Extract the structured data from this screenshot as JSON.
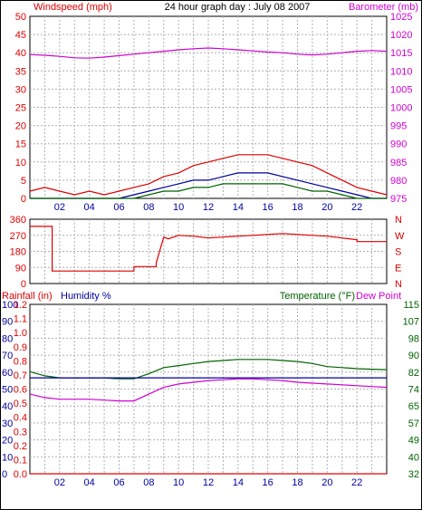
{
  "title": "24 hour graph day : July 08 2007",
  "colors": {
    "red": "#e00000",
    "magenta": "#d000d0",
    "blue": "#0000a0",
    "green": "#006400",
    "grid": "#b0b0b0",
    "frame": "#000000"
  },
  "x_ticks": [
    "02",
    "04",
    "06",
    "08",
    "10",
    "12",
    "14",
    "16",
    "18",
    "20",
    "22"
  ],
  "chart_data": [
    {
      "type": "line",
      "title": "24 hour graph day : July 08 2007",
      "ylabel": "Windspeed (mph)",
      "y2label": "Barometer (mb)",
      "ylim": [
        0,
        50
      ],
      "y2lim": [
        975,
        1025
      ],
      "yticks": [
        "50",
        "45",
        "40",
        "35",
        "30",
        "25",
        "20",
        "15",
        "10",
        "5",
        "0"
      ],
      "y2ticks": [
        "1025",
        "1020",
        "1015",
        "1010",
        "1005",
        "1000",
        "995",
        "990",
        "985",
        "980",
        "975"
      ],
      "xlim": [
        0,
        24
      ],
      "grid": true,
      "series": [
        {
          "key": "barometer",
          "axis": "right",
          "color": "#d000d0",
          "x": [
            0,
            1,
            2,
            3,
            4,
            5,
            6,
            7,
            8,
            9,
            10,
            11,
            12,
            13,
            14,
            15,
            16,
            17,
            18,
            19,
            20,
            21,
            22,
            23,
            24
          ],
          "y": [
            1014.5,
            1014.3,
            1014.0,
            1013.6,
            1013.5,
            1013.8,
            1014.2,
            1014.6,
            1015.0,
            1015.4,
            1015.8,
            1016.1,
            1016.3,
            1016.1,
            1015.8,
            1015.5,
            1015.2,
            1015.0,
            1014.6,
            1014.4,
            1014.6,
            1015.0,
            1015.4,
            1015.6,
            1015.4
          ]
        },
        {
          "key": "wind_gust",
          "axis": "left",
          "color": "#e00000",
          "x": [
            0,
            1,
            2,
            3,
            4,
            5,
            6,
            7,
            8,
            9,
            10,
            11,
            12,
            13,
            14,
            15,
            16,
            17,
            18,
            19,
            20,
            21,
            22,
            23,
            24
          ],
          "y": [
            2,
            3,
            2,
            1,
            2,
            1,
            2,
            3,
            4,
            6,
            7,
            9,
            10,
            11,
            12,
            12,
            12,
            11,
            10,
            9,
            7,
            5,
            3,
            2,
            1
          ]
        },
        {
          "key": "wind_avg",
          "axis": "left",
          "color": "#0000a0",
          "x": [
            0,
            1,
            2,
            3,
            4,
            5,
            6,
            7,
            8,
            9,
            10,
            11,
            12,
            13,
            14,
            15,
            16,
            17,
            18,
            19,
            20,
            21,
            22,
            23,
            24
          ],
          "y": [
            0,
            0,
            0,
            0,
            0,
            0,
            0,
            1,
            2,
            3,
            4,
            5,
            5,
            6,
            7,
            7,
            7,
            6,
            5,
            4,
            3,
            2,
            1,
            0,
            0
          ]
        },
        {
          "key": "wind_speed",
          "axis": "left",
          "color": "#006400",
          "x": [
            0,
            1,
            2,
            3,
            4,
            5,
            6,
            7,
            8,
            9,
            10,
            11,
            12,
            13,
            14,
            15,
            16,
            17,
            18,
            19,
            20,
            21,
            22,
            23,
            24
          ],
          "y": [
            0,
            0,
            0,
            0,
            0,
            0,
            0,
            0,
            1,
            2,
            2,
            3,
            3,
            4,
            4,
            4,
            4,
            4,
            3,
            2,
            2,
            1,
            0,
            0,
            0
          ]
        }
      ]
    },
    {
      "type": "line",
      "ylim": [
        0,
        360
      ],
      "yticks": [
        "360",
        "270",
        "180",
        "90",
        "0"
      ],
      "y2ticks": [
        "N",
        "W",
        "S",
        "E",
        "N"
      ],
      "xlim": [
        0,
        24
      ],
      "grid": true,
      "series": [
        {
          "key": "wind_direction",
          "axis": "left",
          "color": "#e00000",
          "x": [
            0,
            1.5,
            1.5,
            7,
            7,
            8.5,
            8.5,
            9.0,
            9.3,
            10,
            11,
            12,
            13,
            14,
            15,
            16,
            17,
            18,
            19,
            20,
            21,
            22,
            22,
            24
          ],
          "y": [
            320,
            320,
            70,
            70,
            95,
            95,
            115,
            260,
            250,
            270,
            265,
            255,
            260,
            265,
            270,
            275,
            280,
            275,
            270,
            265,
            255,
            245,
            235,
            235
          ]
        }
      ]
    },
    {
      "type": "line",
      "ylabel": "Rainfall (in)",
      "ylabel2": "Humidity %",
      "y2label": "Temperature (°F)",
      "y2label2": "Dew Point",
      "ylim": [
        0,
        100
      ],
      "yticks_humidity": [
        "100",
        "90",
        "80",
        "70",
        "60",
        "50",
        "40",
        "30",
        "20",
        "10",
        "0"
      ],
      "yticks_rain": [
        "1.2",
        "1.1",
        "1.0",
        "0.9",
        "0.8",
        "0.7",
        "0.6",
        "0.5",
        "0.4",
        "0.3",
        "0.2",
        "0.1",
        "0.0"
      ],
      "y2lim": [
        32,
        115
      ],
      "y2ticks": [
        "115",
        "107",
        "98",
        "90",
        "82",
        "74",
        "65",
        "57",
        "49",
        "40",
        "32"
      ],
      "xlim": [
        0,
        24
      ],
      "grid": true,
      "series": [
        {
          "key": "temperature",
          "axis": "right",
          "color": "#006400",
          "x": [
            0,
            1,
            2,
            3,
            4,
            5,
            6,
            7,
            8,
            9,
            10,
            11,
            12,
            13,
            14,
            15,
            16,
            17,
            18,
            19,
            20,
            21,
            22,
            23,
            24
          ],
          "y": [
            82,
            80,
            79,
            79,
            79,
            79,
            78.5,
            78.5,
            81,
            84,
            85,
            86,
            87,
            87.5,
            88,
            88,
            88,
            87.5,
            87,
            86,
            84.5,
            84,
            83.5,
            83.2,
            83
          ]
        },
        {
          "key": "dew_point",
          "axis": "right",
          "color": "#0000a0",
          "x": [
            0,
            24
          ],
          "y": [
            79,
            79
          ]
        },
        {
          "key": "humidity",
          "axis": "left",
          "color": "#d000d0",
          "x": [
            0,
            1,
            2,
            3,
            4,
            5,
            6,
            7,
            8,
            9,
            10,
            11,
            12,
            13,
            14,
            15,
            16,
            17,
            18,
            19,
            20,
            21,
            22,
            23,
            24
          ],
          "y": [
            47,
            45,
            44,
            44,
            44,
            43.5,
            43,
            43,
            47,
            51,
            53,
            54,
            55,
            55.5,
            56,
            56,
            55.5,
            55,
            54,
            53.5,
            53,
            52.5,
            52,
            51.5,
            51
          ]
        },
        {
          "key": "rainfall",
          "axis": "left",
          "color": "#e00000",
          "x": [
            0,
            24
          ],
          "y": [
            0,
            0
          ]
        }
      ]
    }
  ]
}
